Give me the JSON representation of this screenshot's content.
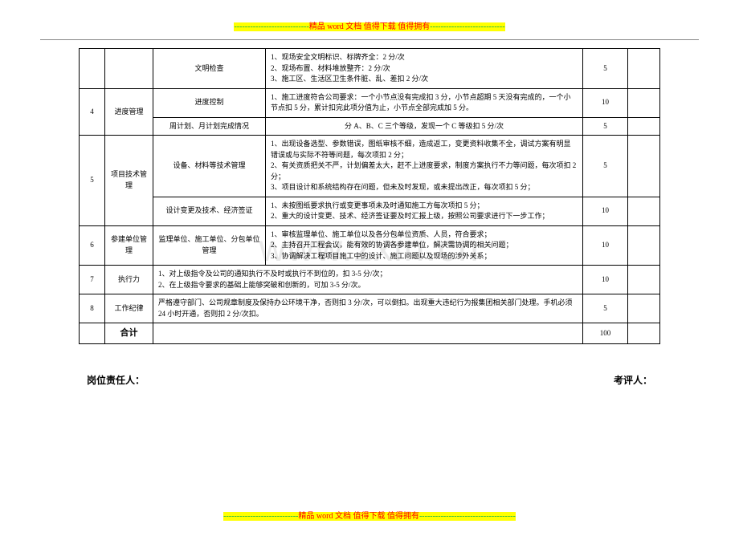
{
  "banner": {
    "dashes": "----------------------------",
    "dashes_long": "------------------------------------",
    "prefix_word": "精品",
    "word": "word",
    "middle": "文档  值得下载  值得拥有"
  },
  "watermark": "www.zxin.cn",
  "table": {
    "rows": [
      {
        "col3": "文明检查",
        "col4": "1、现场安全文明标识、标牌齐全：2 分/次\n2、现场布置、材料堆放整齐：2 分/次\n3、施工区、生活区卫生条件脏、乱、差扣 2 分/次",
        "col5": "5"
      },
      {
        "col1": "4",
        "col2": "进度管理",
        "col3": "进度控制",
        "col4": "1、施工进度符合公司要求：一个小节点没有完成扣 3 分，小节点超期 5 天没有完成的，一个小节点扣 5 分，累计扣完此项分值为止，小节点全部完成加 5 分。",
        "col5": "10"
      },
      {
        "col3": "周计划、月计划完成情况",
        "col4": "分 A、B、C 三个等级，发现一个 C 等级扣 5 分/次",
        "col5": "5"
      },
      {
        "col1": "5",
        "col2": "项目技术管理",
        "col3": "设备、材料等技术管理",
        "col4": "1、出现设备选型、参数错误，图纸审核不细，造成返工，变更资料收集不全，调试方案有明显错误或与实际不符等问题，每次项扣 2 分；\n2、有关资质把关不严，计划偏差太大，赶不上进度要求，制度方案执行不力等问题，每次项扣 2 分；\n3、项目设计和系统结构存在问题，但未及时发现，或未提出改正，每次项扣 5 分；",
        "col5": "5"
      },
      {
        "col3": "设计变更及技术、经济签证",
        "col4": "1、未按图纸要求执行或变更事项未及时通知施工方每次项扣 5 分；\n2、重大的设计变更、技术、经济签证要及时汇报上级，按照公司要求进行下一步工作；",
        "col5": "10"
      },
      {
        "col1": "6",
        "col2": "参建单位管理",
        "col3": "监理单位、施工单位、分包单位管理",
        "col4": "1、审核监理单位、施工单位以及各分包单位资质、人员，符合要求；\n2、主持召开工程会议，能有效的协调各参建单位，解决需协调的相关问题；\n3、协调解决工程项目施工中的设计、施工问题以及现场的涉外关系；",
        "col5": "10"
      },
      {
        "col1": "7",
        "col2": "执行力",
        "col34": "1、对上级指令及公司的通知执行不及时或执行不到位的，扣 3-5 分/次；\n2、在上级指令要求的基础上能够突破和创新的，可加 3-5 分/次。",
        "col5": "10"
      },
      {
        "col1": "8",
        "col2": "工作纪律",
        "col34": "严格遵守部门、公司规章制度及保持办公环境干净，否则扣 3 分/次，可以倒扣。出现重大违纪行为报集团相关部门处理。手机必须 24 小时开通，否则扣 2 分/次扣。",
        "col5": "5"
      }
    ],
    "total_label": "合计",
    "total_value": "100"
  },
  "signature": {
    "left": "岗位责任人：",
    "right": "考评人："
  }
}
